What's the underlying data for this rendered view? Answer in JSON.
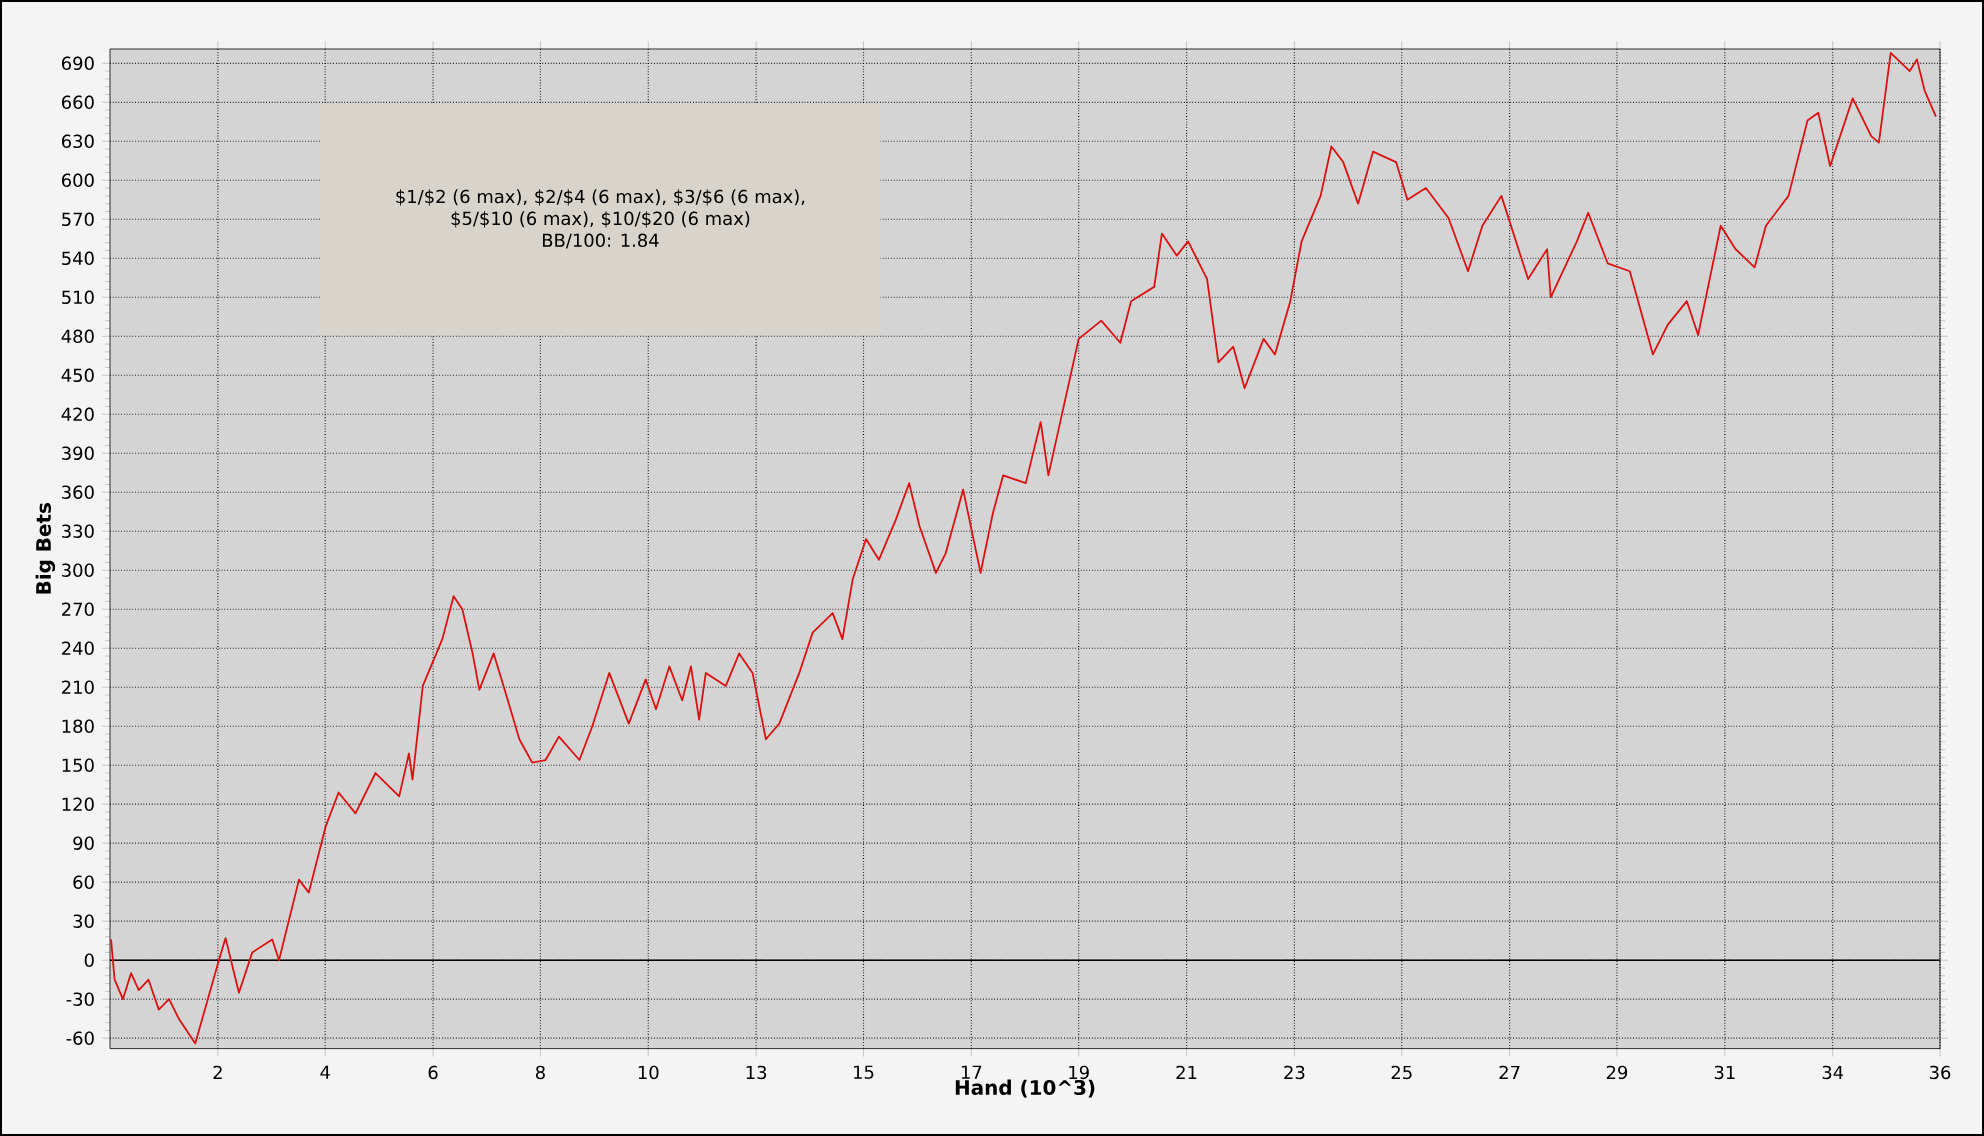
{
  "chart_data": {
    "type": "line",
    "xlabel": "Hand (10^3)",
    "ylabel": "Big Bets",
    "annotations": [
      "$1/$2 (6 max), $2/$4 (6 max), $3/$6 (6 max),",
      "$5/$10 (6 max), $10/$20 (6 max)",
      "BB/100: 1.84"
    ],
    "x": [
      0.02,
      0.09,
      0.25,
      0.41,
      0.56,
      0.75,
      0.95,
      1.15,
      1.34,
      1.66,
      2.12,
      2.25,
      2.51,
      2.77,
      3.16,
      3.29,
      3.68,
      3.87,
      4.2,
      4.45,
      4.78,
      5.17,
      5.63,
      5.82,
      5.89,
      6.09,
      6.47,
      6.69,
      6.86,
      7.06,
      7.19,
      7.47,
      7.7,
      7.97,
      8.22,
      8.48,
      8.74,
      9.14,
      9.39,
      9.72,
      10.1,
      10.43,
      10.63,
      10.89,
      11.14,
      11.31,
      11.47,
      11.6,
      11.99,
      12.25,
      12.51,
      12.77,
      13.03,
      13.42,
      13.68,
      14.07,
      14.26,
      14.46,
      14.72,
      14.97,
      15.3,
      15.56,
      15.76,
      16.08,
      16.27,
      16.61,
      16.95,
      17.19,
      17.39,
      17.83,
      18.12,
      18.27,
      18.86,
      19.3,
      19.67,
      19.88,
      20.33,
      20.48,
      20.77,
      20.99,
      21.36,
      21.58,
      21.87,
      22.09,
      22.46,
      22.68,
      22.98,
      23.2,
      23.57,
      23.78,
      24.01,
      24.3,
      24.59,
      25.04,
      25.26,
      25.62,
      26.06,
      26.44,
      26.72,
      27.09,
      27.61,
      27.98,
      28.05,
      28.56,
      28.78,
      29.16,
      29.59,
      30.04,
      30.33,
      30.7,
      30.92,
      31.36,
      31.65,
      32.02,
      32.24,
      32.68,
      33.05,
      33.26,
      33.49,
      33.93,
      34.29,
      34.44,
      34.67,
      35.04,
      35.18,
      35.33,
      35.55
    ],
    "series": [
      {
        "color": "#dd1111",
        "values": [
          16,
          -15,
          -30,
          -10,
          -23,
          -15,
          -38,
          -30,
          -45,
          -64,
          0,
          17,
          -25,
          6,
          16,
          0,
          62,
          52,
          103,
          129,
          113,
          144,
          126,
          159,
          139,
          211,
          247,
          280,
          270,
          236,
          208,
          236,
          206,
          170,
          152,
          154,
          172,
          154,
          180,
          221,
          182,
          216,
          193,
          226,
          200,
          226,
          185,
          221,
          211,
          236,
          221,
          170,
          182,
          221,
          252,
          267,
          247,
          293,
          324,
          308,
          339,
          367,
          334,
          298,
          313,
          362,
          298,
          344,
          373,
          367,
          414,
          373,
          478,
          492,
          475,
          507,
          518,
          559,
          542,
          553,
          524,
          460,
          472,
          440,
          478,
          466,
          507,
          553,
          588,
          626,
          614,
          582,
          622,
          614,
          585,
          594,
          571,
          530,
          565,
          588,
          524,
          547,
          510,
          553,
          575,
          536,
          530,
          466,
          489,
          507,
          481,
          565,
          547,
          533,
          565,
          588,
          646,
          652,
          611,
          663,
          634,
          629,
          698,
          684,
          693,
          669,
          649
        ]
      }
    ],
    "xlim": [
      0,
      35.63
    ],
    "ylim": [
      -68,
      701
    ],
    "xticks": [
      {
        "value": 2.1,
        "label": "2"
      },
      {
        "value": 4.19,
        "label": "4"
      },
      {
        "value": 6.29,
        "label": "6"
      },
      {
        "value": 8.38,
        "label": "8"
      },
      {
        "value": 10.48,
        "label": "10"
      },
      {
        "value": 12.58,
        "label": "13"
      },
      {
        "value": 14.67,
        "label": "15"
      },
      {
        "value": 16.77,
        "label": "17"
      },
      {
        "value": 18.86,
        "label": "19"
      },
      {
        "value": 20.96,
        "label": "21"
      },
      {
        "value": 23.06,
        "label": "23"
      },
      {
        "value": 25.15,
        "label": "25"
      },
      {
        "value": 27.25,
        "label": "27"
      },
      {
        "value": 29.34,
        "label": "29"
      },
      {
        "value": 31.44,
        "label": "31"
      },
      {
        "value": 33.54,
        "label": "34"
      },
      {
        "value": 35.63,
        "label": "36"
      }
    ],
    "yticks": [
      -60,
      -30,
      0,
      30,
      60,
      90,
      120,
      150,
      180,
      210,
      240,
      270,
      300,
      330,
      360,
      390,
      420,
      450,
      480,
      510,
      540,
      570,
      600,
      630,
      660,
      690
    ],
    "grid": true,
    "ref_lines": [
      {
        "axis": "y",
        "value": 0,
        "color": "#000000"
      }
    ]
  }
}
